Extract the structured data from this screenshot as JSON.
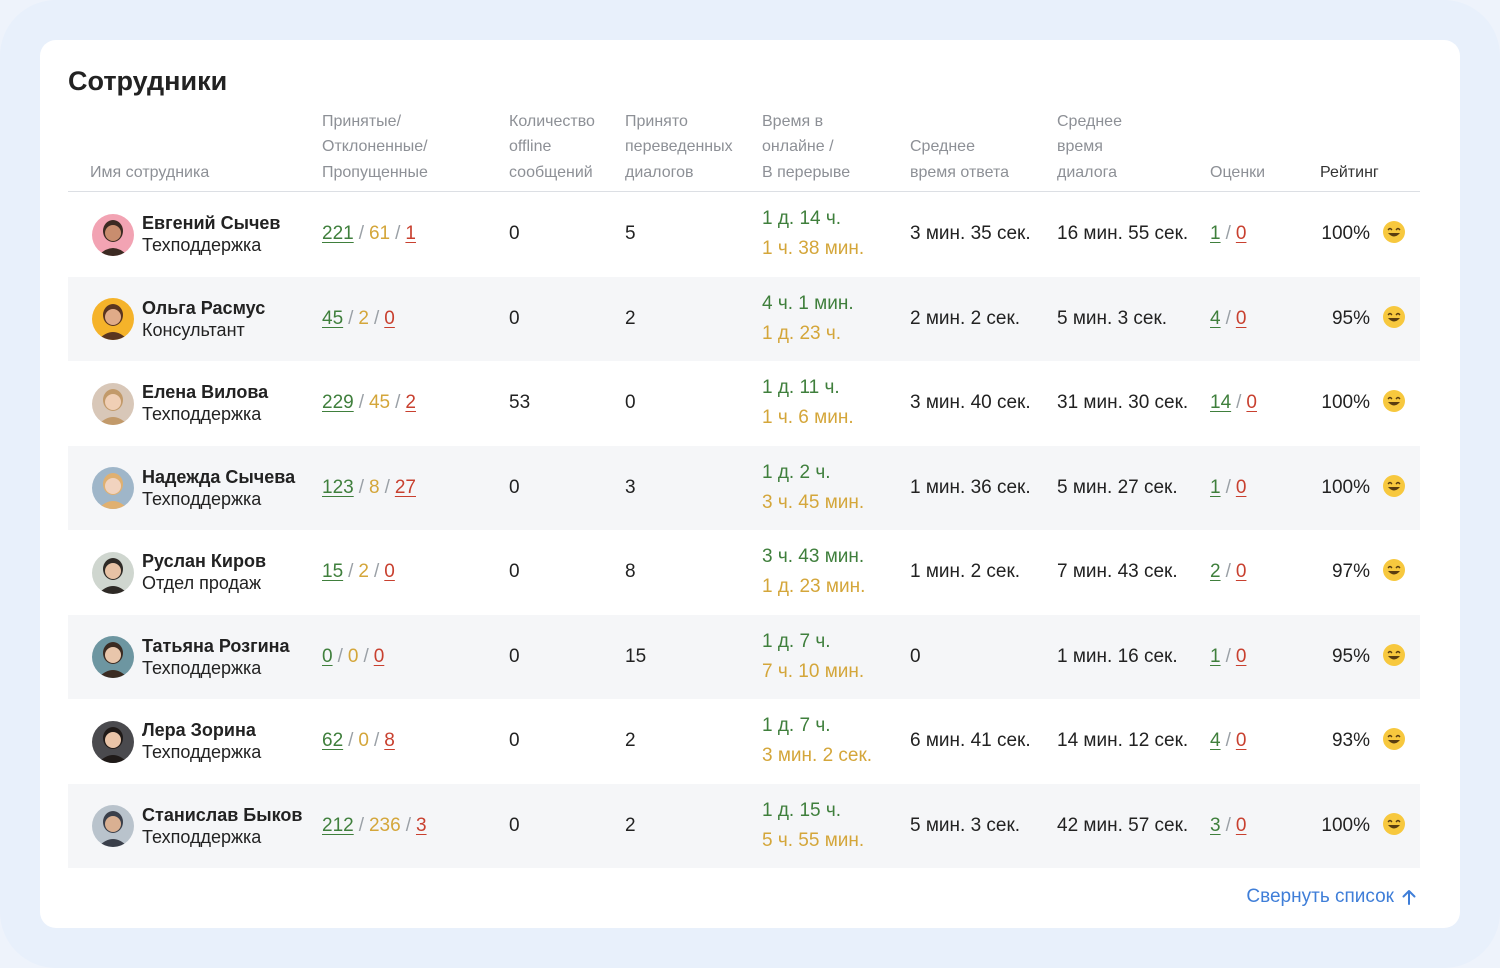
{
  "title": "Сотрудники",
  "columns": [
    "Имя сотрудника",
    "Принятые/\nОтклоненные/\nПропущенные",
    "Количество\noffline\nсообщений",
    "Принято\nпереведенных\nдиалогов",
    "Время в\nонлайне /\nВ перерыве",
    "Среднее\nвремя ответа",
    "Среднее\nвремя\nдиалога",
    "Оценки",
    "Рейтинг"
  ],
  "employees": [
    {
      "name": "Евгений Сычев",
      "dept": "Техподдержка",
      "accepted": "221",
      "declined": "61",
      "missed": "1",
      "offline": "0",
      "transferred": "5",
      "online": "1 д. 14 ч.",
      "pause": "1 ч. 38 мин.",
      "avg_response": "3 мин. 35 сек.",
      "avg_dialog": "16 мин. 55 сек.",
      "good": "1",
      "bad": "0",
      "rating": "100%"
    },
    {
      "name": "Ольга Расмус",
      "dept": "Консультант",
      "accepted": "45",
      "declined": "2",
      "missed": "0",
      "offline": "0",
      "transferred": "2",
      "online": "4 ч. 1 мин.",
      "pause": "1 д. 23 ч.",
      "avg_response": "2 мин. 2 сек.",
      "avg_dialog": "5 мин. 3 сек.",
      "good": "4",
      "bad": "0",
      "rating": "95%"
    },
    {
      "name": "Елена Вилова",
      "dept": "Техподдержка",
      "accepted": "229",
      "declined": "45",
      "missed": "2",
      "offline": "53",
      "transferred": "0",
      "online": "1 д. 11 ч.",
      "pause": "1 ч. 6 мин.",
      "avg_response": "3 мин. 40 сек.",
      "avg_dialog": "31 мин. 30 сек.",
      "good": "14",
      "bad": "0",
      "rating": "100%"
    },
    {
      "name": "Надежда Сычева",
      "dept": "Техподдержка",
      "accepted": "123",
      "declined": "8",
      "missed": "27",
      "offline": "0",
      "transferred": "3",
      "online": "1 д. 2 ч.",
      "pause": "3 ч. 45 мин.",
      "avg_response": "1 мин. 36 сек.",
      "avg_dialog": "5 мин. 27 сек.",
      "good": "1",
      "bad": "0",
      "rating": "100%"
    },
    {
      "name": "Руслан Киров",
      "dept": "Отдел продаж",
      "accepted": "15",
      "declined": "2",
      "missed": "0",
      "offline": "0",
      "transferred": "8",
      "online": "3 ч. 43 мин.",
      "pause": "1 д. 23 мин.",
      "avg_response": "1 мин. 2 сек.",
      "avg_dialog": "7 мин. 43 сек.",
      "good": "2",
      "bad": "0",
      "rating": "97%"
    },
    {
      "name": "Татьяна Розгина",
      "dept": "Техподдержка",
      "accepted": "0",
      "declined": "0",
      "missed": "0",
      "offline": "0",
      "transferred": "15",
      "online": "1 д. 7 ч.",
      "pause": "7 ч. 10 мин.",
      "avg_response": "0",
      "avg_dialog": "1 мин. 16 сек.",
      "good": "1",
      "bad": "0",
      "rating": "95%"
    },
    {
      "name": "Лера Зорина",
      "dept": "Техподдержка",
      "accepted": "62",
      "declined": "0",
      "missed": "8",
      "offline": "0",
      "transferred": "2",
      "online": "1 д. 7 ч.",
      "pause": "3 мин. 2 сек.",
      "avg_response": "6 мин. 41 сек.",
      "avg_dialog": "14 мин. 12 сек.",
      "good": "4",
      "bad": "0",
      "rating": "93%"
    },
    {
      "name": "Станислав Быков",
      "dept": "Техподдержка",
      "accepted": "212",
      "declined": "236",
      "missed": "3",
      "offline": "0",
      "transferred": "2",
      "online": "1 д. 15 ч.",
      "pause": "5 ч. 55 мин.",
      "avg_response": "5 мин. 3 сек.",
      "avg_dialog": "42 мин. 57 сек.",
      "good": "3",
      "bad": "0",
      "rating": "100%"
    }
  ],
  "collapse_label": "Свернуть список",
  "colors": {
    "green": "#3f7f3c",
    "orange": "#d4a63a",
    "red": "#c8402f",
    "link": "#3f7ed8"
  },
  "icons": {
    "rating": "smiley-icon",
    "collapse": "arrow-up-icon"
  }
}
